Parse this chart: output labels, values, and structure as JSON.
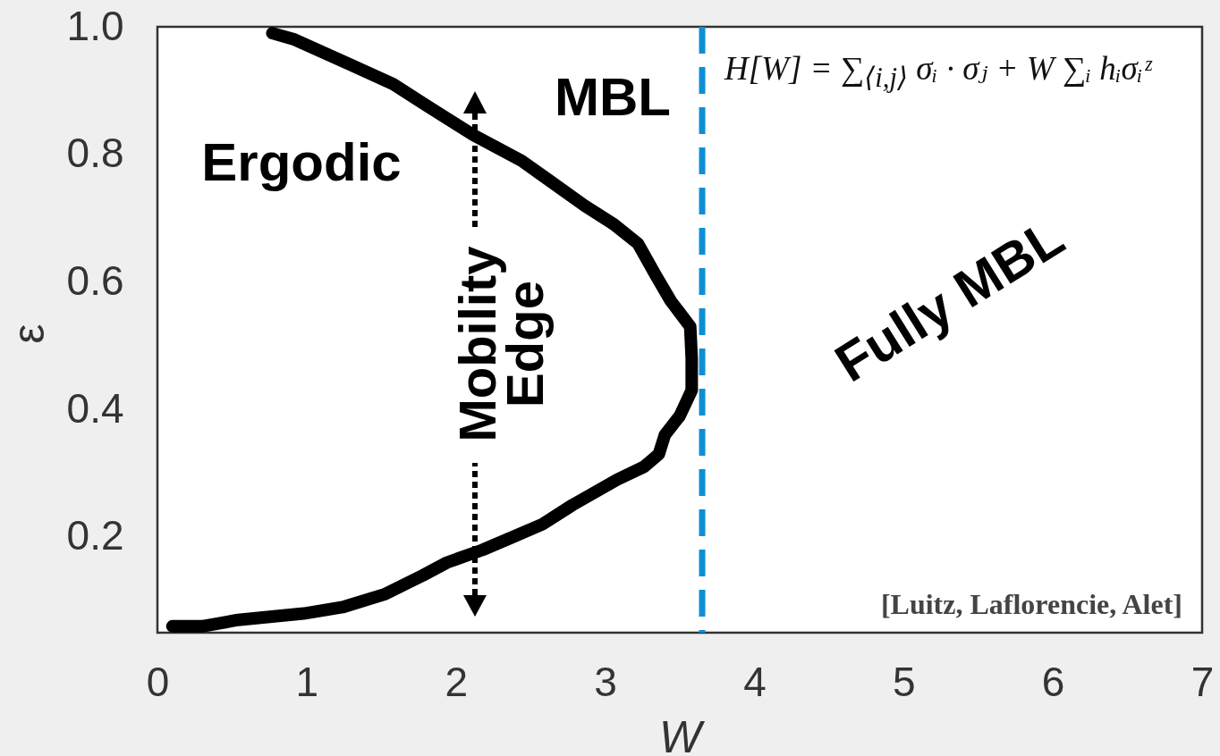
{
  "chart_data": {
    "type": "line",
    "xlabel": "W",
    "ylabel": "ε",
    "x": [
      0.77,
      0.92,
      1.3,
      1.58,
      1.78,
      2.12,
      2.28,
      2.44,
      2.62,
      2.86,
      3.06,
      3.22,
      3.34,
      3.44,
      3.57,
      3.58,
      3.58,
      3.5,
      3.4,
      3.36,
      3.26,
      3.08,
      2.78,
      2.58,
      2.38,
      2.18,
      1.94,
      1.78,
      1.52,
      1.24,
      0.98,
      0.54,
      0.3,
      0.1
    ],
    "series": [
      {
        "color": "#000000",
        "values": [
          0.99,
          0.98,
          0.94,
          0.91,
          0.88,
          0.83,
          0.81,
          0.79,
          0.76,
          0.72,
          0.69,
          0.66,
          0.61,
          0.57,
          0.53,
          0.48,
          0.43,
          0.39,
          0.36,
          0.33,
          0.31,
          0.29,
          0.25,
          0.22,
          0.2,
          0.18,
          0.16,
          0.14,
          0.11,
          0.09,
          0.08,
          0.07,
          0.06,
          0.06
        ]
      }
    ],
    "xlim": [
      0,
      7
    ],
    "xticks": [
      0,
      1,
      2,
      3,
      4,
      5,
      6,
      7
    ],
    "ylim": [
      0.05,
      1
    ],
    "yticks": [
      0.2,
      0.4,
      0.6,
      0.8,
      {
        "value": 1,
        "label": "1.0"
      }
    ],
    "ref_lines": [
      {
        "axis": "x",
        "value": 3.65,
        "color": "#0e8fd5",
        "line_style": "dashed"
      }
    ],
    "annotations": [
      "Ergodic",
      "MBL",
      "Fully MBL",
      "Mobility Edge",
      "H[W] = ∑$_{⟨i,j⟩}$ σᵢ · σⱼ + W ∑ᵢ hᵢσᵢᶻ",
      "[Luitz, Laflorencie, Alet]"
    ]
  }
}
